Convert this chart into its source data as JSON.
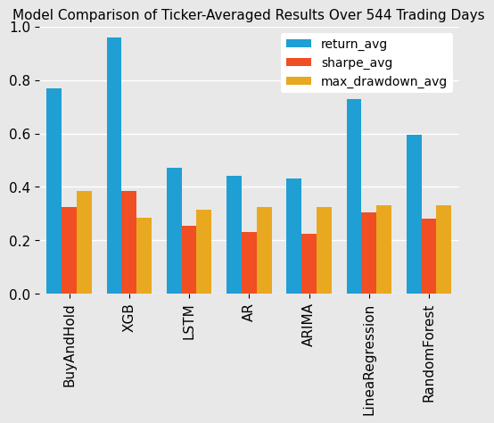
{
  "title": "Model Comparison of Ticker-Averaged Results Over 544 Trading Days",
  "categories": [
    "BuyAndHold",
    "XGB",
    "LSTM",
    "AR",
    "ARIMA",
    "LineaRegression",
    "RandomForest"
  ],
  "series": {
    "return_avg": [
      0.77,
      0.96,
      0.47,
      0.44,
      0.43,
      0.73,
      0.595
    ],
    "sharpe_avg": [
      0.325,
      0.385,
      0.255,
      0.23,
      0.225,
      0.305,
      0.28
    ],
    "max_drawdown_avg": [
      0.385,
      0.285,
      0.315,
      0.325,
      0.325,
      0.33,
      0.33
    ]
  },
  "series_labels": [
    "return_avg",
    "sharpe_avg",
    "max_drawdown_avg"
  ],
  "colors": [
    "#1f9fd4",
    "#f04e23",
    "#e8a820"
  ],
  "ylim": [
    0.0,
    1.0
  ],
  "yticks": [
    0.0,
    0.2,
    0.4,
    0.6,
    0.8,
    1.0
  ],
  "bar_width": 0.25,
  "background_color": "#e8e8e8",
  "grid_color": "#ffffff",
  "title_fontsize": 11,
  "legend_fontsize": 10,
  "tick_fontsize": 11,
  "label_rotation": 90
}
